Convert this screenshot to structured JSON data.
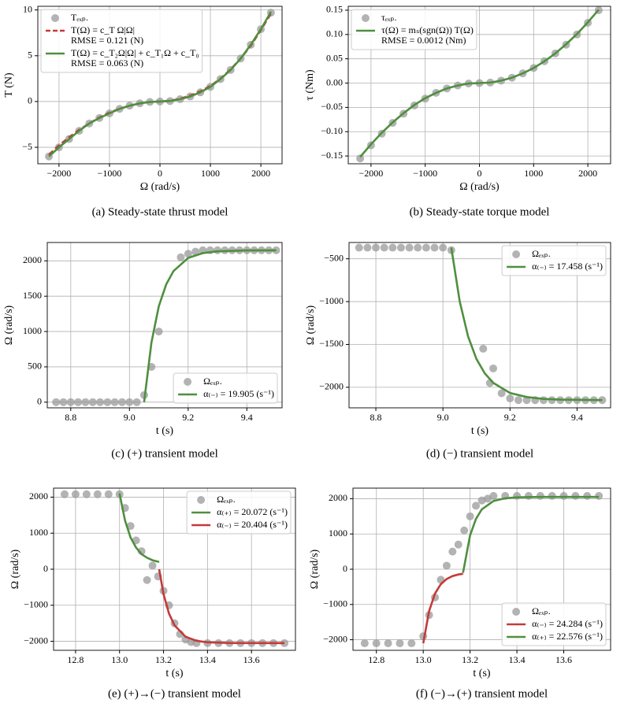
{
  "chart_data": [
    {
      "type": "scatter",
      "caption": "(a) Steady-state thrust model",
      "xlabel": "Ω (rad/s)",
      "ylabel": "T (N)",
      "grid": true,
      "legend": "upper left",
      "xlim": [
        -2420,
        2420
      ],
      "xticks": [
        {
          "value": -2000,
          "label": "−2000"
        },
        {
          "value": -1000,
          "label": "−1000"
        },
        0,
        1000,
        2000
      ],
      "ylim": [
        -6.8,
        10.4
      ],
      "yticks": [
        {
          "value": -5,
          "label": "−5"
        },
        0,
        5,
        10
      ],
      "series": [
        {
          "name": "Tₑₓₚ.",
          "type": "scatter",
          "color": "#999999",
          "x": [
            -2200,
            -2000,
            -1800,
            -1600,
            -1400,
            -1200,
            -1000,
            -800,
            -600,
            -400,
            -200,
            0,
            200,
            400,
            600,
            800,
            1000,
            1200,
            1400,
            1600,
            1800,
            2000,
            2200
          ],
          "values": [
            -6.0,
            -5.0,
            -4.1,
            -3.2,
            -2.4,
            -1.8,
            -1.3,
            -0.8,
            -0.45,
            -0.2,
            -0.05,
            0,
            0.05,
            0.25,
            0.55,
            1.0,
            1.6,
            2.45,
            3.45,
            4.7,
            6.2,
            7.9,
            9.7
          ]
        },
        {
          "name": "T(Ω) = c_T Ω|Ω|",
          "legend_note": "RMSE = 0.121 (N)",
          "type": "line",
          "dash": true,
          "color": "#c43a3a",
          "x": [
            -2200,
            -2000,
            -1800,
            -1600,
            -1400,
            -1200,
            -1000,
            -800,
            -600,
            -400,
            -200,
            0,
            200,
            400,
            600,
            800,
            1000,
            1200,
            1400,
            1600,
            1800,
            2000,
            2200
          ],
          "values": [
            -5.8,
            -4.8,
            -3.9,
            -3.1,
            -2.4,
            -1.75,
            -1.2,
            -0.8,
            -0.45,
            -0.2,
            -0.05,
            0,
            0.07,
            0.3,
            0.65,
            1.1,
            1.7,
            2.5,
            3.5,
            4.7,
            6.1,
            7.8,
            9.6
          ]
        },
        {
          "name": "T(Ω) = c_T₂Ω|Ω| + c_T₁Ω + c_T₀",
          "legend_note": "RMSE = 0.063 (N)",
          "type": "line",
          "color": "#4f8f3f",
          "x": [
            -2200,
            -2000,
            -1800,
            -1600,
            -1400,
            -1200,
            -1000,
            -800,
            -600,
            -400,
            -200,
            0,
            200,
            400,
            600,
            800,
            1000,
            1200,
            1400,
            1600,
            1800,
            2000,
            2200
          ],
          "values": [
            -6.0,
            -5.0,
            -4.1,
            -3.2,
            -2.4,
            -1.8,
            -1.3,
            -0.8,
            -0.45,
            -0.2,
            -0.05,
            0,
            0.05,
            0.25,
            0.55,
            1.0,
            1.6,
            2.45,
            3.45,
            4.7,
            6.2,
            7.9,
            9.8
          ]
        }
      ]
    },
    {
      "type": "scatter",
      "caption": "(b) Steady-state torque model",
      "xlabel": "Ω (rad/s)",
      "ylabel": "τ (Nm)",
      "grid": true,
      "legend": "upper left",
      "xlim": [
        -2420,
        2420
      ],
      "xticks": [
        {
          "value": -2000,
          "label": "−2000"
        },
        {
          "value": -1000,
          "label": "−1000"
        },
        0,
        1000,
        2000
      ],
      "ylim": [
        -0.166,
        0.158
      ],
      "yticks": [
        {
          "value": -0.15,
          "label": "−0.15"
        },
        {
          "value": -0.1,
          "label": "−0.10"
        },
        {
          "value": -0.05,
          "label": "−0.05"
        },
        {
          "value": 0,
          "label": "0.00"
        },
        {
          "value": 0.05,
          "label": "0.05"
        },
        {
          "value": 0.1,
          "label": "0.10"
        },
        {
          "value": 0.15,
          "label": "0.15"
        }
      ],
      "series": [
        {
          "name": "τₑₓₚ.",
          "type": "scatter",
          "color": "#999999",
          "x": [
            -2200,
            -2000,
            -1800,
            -1600,
            -1400,
            -1200,
            -1000,
            -800,
            -600,
            -400,
            -200,
            0,
            200,
            400,
            600,
            800,
            1000,
            1200,
            1400,
            1600,
            1800,
            2000,
            2200
          ],
          "values": [
            -0.155,
            -0.128,
            -0.104,
            -0.082,
            -0.063,
            -0.046,
            -0.032,
            -0.02,
            -0.011,
            -0.005,
            -0.001,
            0,
            0.001,
            0.005,
            0.011,
            0.02,
            0.031,
            0.045,
            0.061,
            0.079,
            0.1,
            0.124,
            0.15
          ]
        },
        {
          "name": "τ(Ω) = mₛ(sgn(Ω)) T(Ω)",
          "legend_note": "RMSE = 0.0012 (Nm)",
          "type": "line",
          "color": "#4f8f3f",
          "x": [
            -2200,
            -2000,
            -1800,
            -1600,
            -1400,
            -1200,
            -1000,
            -800,
            -600,
            -400,
            -200,
            0,
            200,
            400,
            600,
            800,
            1000,
            1200,
            1400,
            1600,
            1800,
            2000,
            2200
          ],
          "values": [
            -0.152,
            -0.126,
            -0.102,
            -0.081,
            -0.062,
            -0.045,
            -0.031,
            -0.02,
            -0.011,
            -0.005,
            -0.001,
            0,
            0.001,
            0.005,
            0.011,
            0.02,
            0.031,
            0.045,
            0.061,
            0.08,
            0.101,
            0.125,
            0.151
          ]
        }
      ]
    },
    {
      "type": "scatter",
      "caption": "(c) (+) transient model",
      "xlabel": "t (s)",
      "ylabel": "Ω (rad/s)",
      "grid": true,
      "legend": "lower right",
      "xlim": [
        8.72,
        9.52
      ],
      "xticks": [
        8.8,
        {
          "value": 9.0,
          "label": "9.0"
        },
        9.2,
        9.4
      ],
      "ylim": [
        -80,
        2260
      ],
      "yticks": [
        0,
        500,
        1000,
        1500,
        2000
      ],
      "series": [
        {
          "name": "Ωₑₓₚ.",
          "type": "scatter",
          "color": "#999999",
          "x": [
            8.75,
            8.775,
            8.8,
            8.825,
            8.85,
            8.875,
            8.9,
            8.925,
            8.95,
            8.975,
            9.0,
            9.025,
            9.05,
            9.075,
            9.1,
            9.175,
            9.2,
            9.225,
            9.25,
            9.275,
            9.3,
            9.325,
            9.35,
            9.375,
            9.4,
            9.425,
            9.45,
            9.475,
            9.5
          ],
          "values": [
            0,
            0,
            0,
            0,
            0,
            0,
            0,
            0,
            0,
            0,
            0,
            0,
            100,
            500,
            1000,
            2050,
            2100,
            2130,
            2150,
            2150,
            2150,
            2150,
            2150,
            2150,
            2150,
            2150,
            2150,
            2150,
            2150
          ]
        },
        {
          "name": "α₍₋₎ = 19.905 (s⁻¹)",
          "type": "line",
          "color": "#4f8f3f",
          "x": [
            9.05,
            9.075,
            9.1,
            9.125,
            9.15,
            9.2,
            9.25,
            9.3,
            9.4,
            9.5
          ],
          "values": [
            0,
            843,
            1355,
            1666,
            1856,
            2041,
            2110,
            2135,
            2147,
            2150
          ]
        }
      ]
    },
    {
      "type": "scatter",
      "caption": "(d) (−) transient model",
      "xlabel": "t (s)",
      "ylabel": "Ω (rad/s)",
      "grid": true,
      "legend": "upper right",
      "xlim": [
        8.72,
        9.5
      ],
      "xticks": [
        8.8,
        {
          "value": 9.0,
          "label": "9.0"
        },
        9.2,
        9.4
      ],
      "ylim": [
        -2240,
        -310
      ],
      "yticks": [
        {
          "value": -500,
          "label": "−500"
        },
        {
          "value": -1000,
          "label": "−1000"
        },
        {
          "value": -1500,
          "label": "−1500"
        },
        {
          "value": -2000,
          "label": "−2000"
        }
      ],
      "series": [
        {
          "name": "Ωₑₓₚ.",
          "type": "scatter",
          "color": "#999999",
          "x": [
            8.75,
            8.775,
            8.8,
            8.825,
            8.85,
            8.875,
            8.9,
            8.925,
            8.95,
            8.975,
            9.0,
            9.025,
            9.12,
            9.14,
            9.15,
            9.175,
            9.2,
            9.225,
            9.25,
            9.275,
            9.3,
            9.325,
            9.35,
            9.375,
            9.4,
            9.425,
            9.45,
            9.475
          ],
          "values": [
            -370,
            -370,
            -370,
            -370,
            -370,
            -370,
            -370,
            -370,
            -370,
            -370,
            -370,
            -400,
            -1550,
            -1950,
            -1780,
            -2070,
            -2130,
            -2150,
            -2150,
            -2150,
            -2150,
            -2150,
            -2150,
            -2150,
            -2150,
            -2150,
            -2150,
            -2150
          ]
        },
        {
          "name": "α₍₋₎ = 17.458 (s⁻¹)",
          "type": "line",
          "color": "#4f8f3f",
          "x": [
            9.025,
            9.05,
            9.075,
            9.1,
            9.125,
            9.15,
            9.2,
            9.25,
            9.3,
            9.35,
            9.475
          ],
          "values": [
            -370,
            -998,
            -1406,
            -1669,
            -1839,
            -1949,
            -2066,
            -2114,
            -2136,
            -2144,
            -2150
          ]
        }
      ]
    },
    {
      "type": "scatter",
      "caption": "(e) (+)→(−) transient model",
      "xlabel": "t (s)",
      "ylabel": "Ω (rad/s)",
      "grid": true,
      "legend": "upper right",
      "xlim": [
        12.7,
        13.8
      ],
      "xticks": [
        12.8,
        {
          "value": 13.0,
          "label": "13.0"
        },
        13.2,
        13.4,
        13.6
      ],
      "ylim": [
        -2250,
        2250
      ],
      "yticks": [
        {
          "value": -2000,
          "label": "−2000"
        },
        {
          "value": -1000,
          "label": "−1000"
        },
        0,
        1000,
        2000
      ],
      "series": [
        {
          "name": "Ωₑₓₚ.",
          "type": "scatter",
          "color": "#999999",
          "x": [
            12.75,
            12.8,
            12.85,
            12.9,
            12.95,
            13.0,
            13.025,
            13.05,
            13.075,
            13.1,
            13.125,
            13.15,
            13.175,
            13.2,
            13.225,
            13.25,
            13.275,
            13.3,
            13.325,
            13.35,
            13.4,
            13.45,
            13.5,
            13.55,
            13.6,
            13.65,
            13.7,
            13.75
          ],
          "values": [
            2080,
            2080,
            2080,
            2080,
            2080,
            2080,
            1700,
            1200,
            800,
            500,
            -300,
            100,
            -200,
            -600,
            -1000,
            -1500,
            -1800,
            -1950,
            -2020,
            -2050,
            -2050,
            -2050,
            -2050,
            -2050,
            -2050,
            -2050,
            -2050,
            -2050
          ]
        },
        {
          "name": "α₍₊₎ = 20.072 (s⁻¹)",
          "type": "line",
          "color": "#4f8f3f",
          "x": [
            13.0,
            13.025,
            13.05,
            13.075,
            13.1,
            13.125,
            13.15,
            13.18
          ],
          "values": [
            2100,
            1350,
            880,
            600,
            420,
            320,
            250,
            200
          ]
        },
        {
          "name": "α₍₋₎ = 20.404 (s⁻¹)",
          "type": "line",
          "color": "#c43a3a",
          "x": [
            13.18,
            13.2,
            13.225,
            13.25,
            13.3,
            13.35,
            13.4,
            13.5,
            13.75
          ],
          "values": [
            0,
            -687,
            -1230,
            -1558,
            -1874,
            -1986,
            -2027,
            -2047,
            -2050
          ]
        }
      ]
    },
    {
      "type": "scatter",
      "caption": "(f) (−)→(+) transient model",
      "xlabel": "t (s)",
      "ylabel": "Ω (rad/s)",
      "grid": true,
      "legend": "lower right",
      "xlim": [
        12.7,
        13.8
      ],
      "xticks": [
        12.8,
        {
          "value": 13.0,
          "label": "13.0"
        },
        13.2,
        13.4,
        13.6
      ],
      "ylim": [
        -2300,
        2300
      ],
      "yticks": [
        {
          "value": -2000,
          "label": "−2000"
        },
        {
          "value": -1000,
          "label": "−1000"
        },
        0,
        1000,
        2000
      ],
      "series": [
        {
          "name": "Ωₑₓₚ.",
          "type": "scatter",
          "color": "#999999",
          "x": [
            12.75,
            12.8,
            12.85,
            12.9,
            12.95,
            13.0,
            13.025,
            13.05,
            13.075,
            13.1,
            13.125,
            13.15,
            13.175,
            13.2,
            13.225,
            13.25,
            13.275,
            13.3,
            13.35,
            13.4,
            13.45,
            13.5,
            13.55,
            13.6,
            13.65,
            13.7,
            13.75
          ],
          "values": [
            -2100,
            -2100,
            -2100,
            -2100,
            -2100,
            -1900,
            -1300,
            -800,
            -300,
            100,
            500,
            700,
            1100,
            1500,
            1800,
            1950,
            2000,
            2080,
            2080,
            2080,
            2080,
            2080,
            2080,
            2080,
            2080,
            2080,
            2080
          ]
        },
        {
          "name": "α₍₋₎ = 24.284 (s⁻¹)",
          "type": "line",
          "color": "#c43a3a",
          "x": [
            13.0,
            13.025,
            13.05,
            13.075,
            13.1,
            13.125,
            13.15,
            13.17
          ],
          "values": [
            -2100,
            -1190,
            -694,
            -424,
            -276,
            -195,
            -150,
            -130
          ]
        },
        {
          "name": "α₍₊₎ = 22.576 (s⁻¹)",
          "type": "line",
          "color": "#4f8f3f",
          "x": [
            13.17,
            13.2,
            13.225,
            13.25,
            13.3,
            13.35,
            13.4,
            13.5,
            13.75
          ],
          "values": [
            -100,
            958,
            1428,
            1697,
            1936,
            2013,
            2039,
            2049,
            2050
          ]
        }
      ]
    }
  ]
}
